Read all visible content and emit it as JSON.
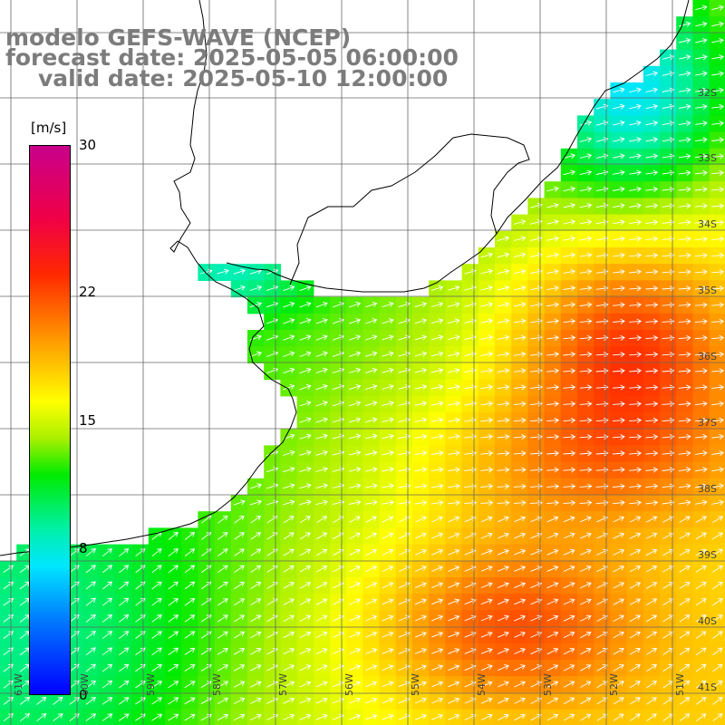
{
  "title": {
    "line1": "modelo GEFS-WAVE (NCEP)",
    "line2": "forecast date: 2025-05-05 06:00:00",
    "line3": "valid date: 2025-05-10 12:00:00"
  },
  "colorbar": {
    "unit": "[m/s]",
    "min": 0,
    "max": 30,
    "ticks": [
      "30",
      "22",
      "15",
      "8",
      "0"
    ],
    "tick_values": [
      30,
      22,
      15,
      8,
      0
    ]
  },
  "lat_labels": [
    "32S",
    "33S",
    "34S",
    "35S",
    "36S",
    "37S",
    "38S",
    "39S",
    "40S",
    "41S"
  ],
  "lat_values": [
    -32,
    -33,
    -34,
    -35,
    -36,
    -37,
    -38,
    -39,
    -40,
    -41
  ],
  "lon_labels": [
    "61W",
    "60W",
    "59W",
    "58W",
    "57W",
    "56W",
    "55W",
    "54W",
    "53W",
    "52W",
    "51W"
  ],
  "lon_values": [
    -61,
    -60,
    -59,
    -58,
    -57,
    -56,
    -55,
    -54,
    -53,
    -52,
    -51
  ],
  "field": {
    "variable": "wind speed",
    "coverage": "ocean only",
    "description_values": {
      "coastal_lagoon_min": 7,
      "estuary": 10,
      "shelf": 13,
      "offshore_max": 20
    }
  }
}
